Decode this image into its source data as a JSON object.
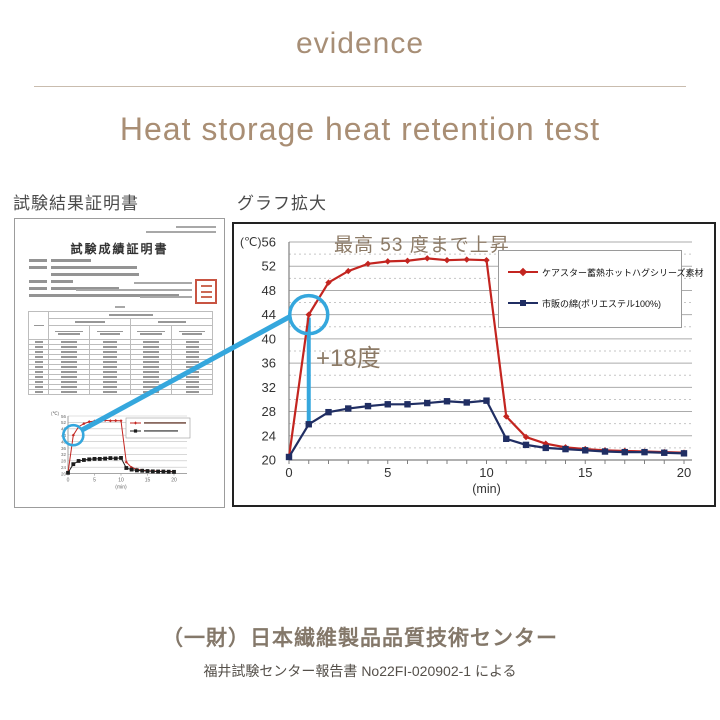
{
  "header": {
    "eyebrow": "evidence",
    "title": "Heat storage heat retention test"
  },
  "sections": {
    "certificate_label": "試験結果証明書",
    "graph_label": "グラフ拡大"
  },
  "certificate": {
    "title": "試験成績証明書"
  },
  "chart_data": {
    "type": "line",
    "x": [
      0,
      1,
      2,
      3,
      4,
      5,
      6,
      7,
      8,
      9,
      10,
      11,
      12,
      13,
      14,
      15,
      16,
      17,
      18,
      19,
      20
    ],
    "series": [
      {
        "name": "ケアスター蓄熱ホットハグシリーズ素材",
        "color": "#c32520",
        "marker": "diamond",
        "values": [
          20.5,
          44.0,
          49.3,
          51.2,
          52.4,
          52.8,
          52.9,
          53.3,
          53.0,
          53.1,
          53.0,
          27.2,
          23.8,
          22.7,
          22.1,
          21.8,
          21.6,
          21.5,
          21.4,
          21.3,
          21.2
        ]
      },
      {
        "name": "市販の綿(ポリエステル100%)",
        "color": "#202e63",
        "marker": "square",
        "values": [
          20.5,
          25.9,
          27.9,
          28.5,
          28.9,
          29.2,
          29.2,
          29.4,
          29.7,
          29.5,
          29.8,
          23.5,
          22.5,
          22.0,
          21.8,
          21.6,
          21.4,
          21.3,
          21.3,
          21.2,
          21.1
        ]
      }
    ],
    "xlabel": "(min)",
    "ylabel": "(℃)",
    "xlim": [
      0,
      20
    ],
    "ylim": [
      20,
      56
    ],
    "xticks": [
      0,
      5,
      10,
      15,
      20
    ],
    "yticks": [
      56,
      52,
      48,
      44,
      40,
      36,
      32,
      28,
      24,
      20
    ],
    "grid": true,
    "legend_position": "upper right",
    "annotations": {
      "max_note": "最高 53 度まで上昇",
      "diff_note": "+18度",
      "highlight_point": {
        "x": 1,
        "y": 44
      },
      "connector": {
        "x": 1,
        "from_y": 25.9,
        "to_y": 44,
        "color": "#35a7dd"
      }
    }
  },
  "footer": {
    "organization": "（一財）日本繊維製品品質技術センター",
    "report": "福井試験センター報告書 No22FI-020902-1 による"
  },
  "colors": {
    "accent_brown": "#a98e74",
    "annotation_brown": "#8c7a66",
    "series_red": "#c32520",
    "series_navy": "#202e63",
    "highlight_blue": "#35a7dd",
    "seal_red": "#c85442"
  }
}
